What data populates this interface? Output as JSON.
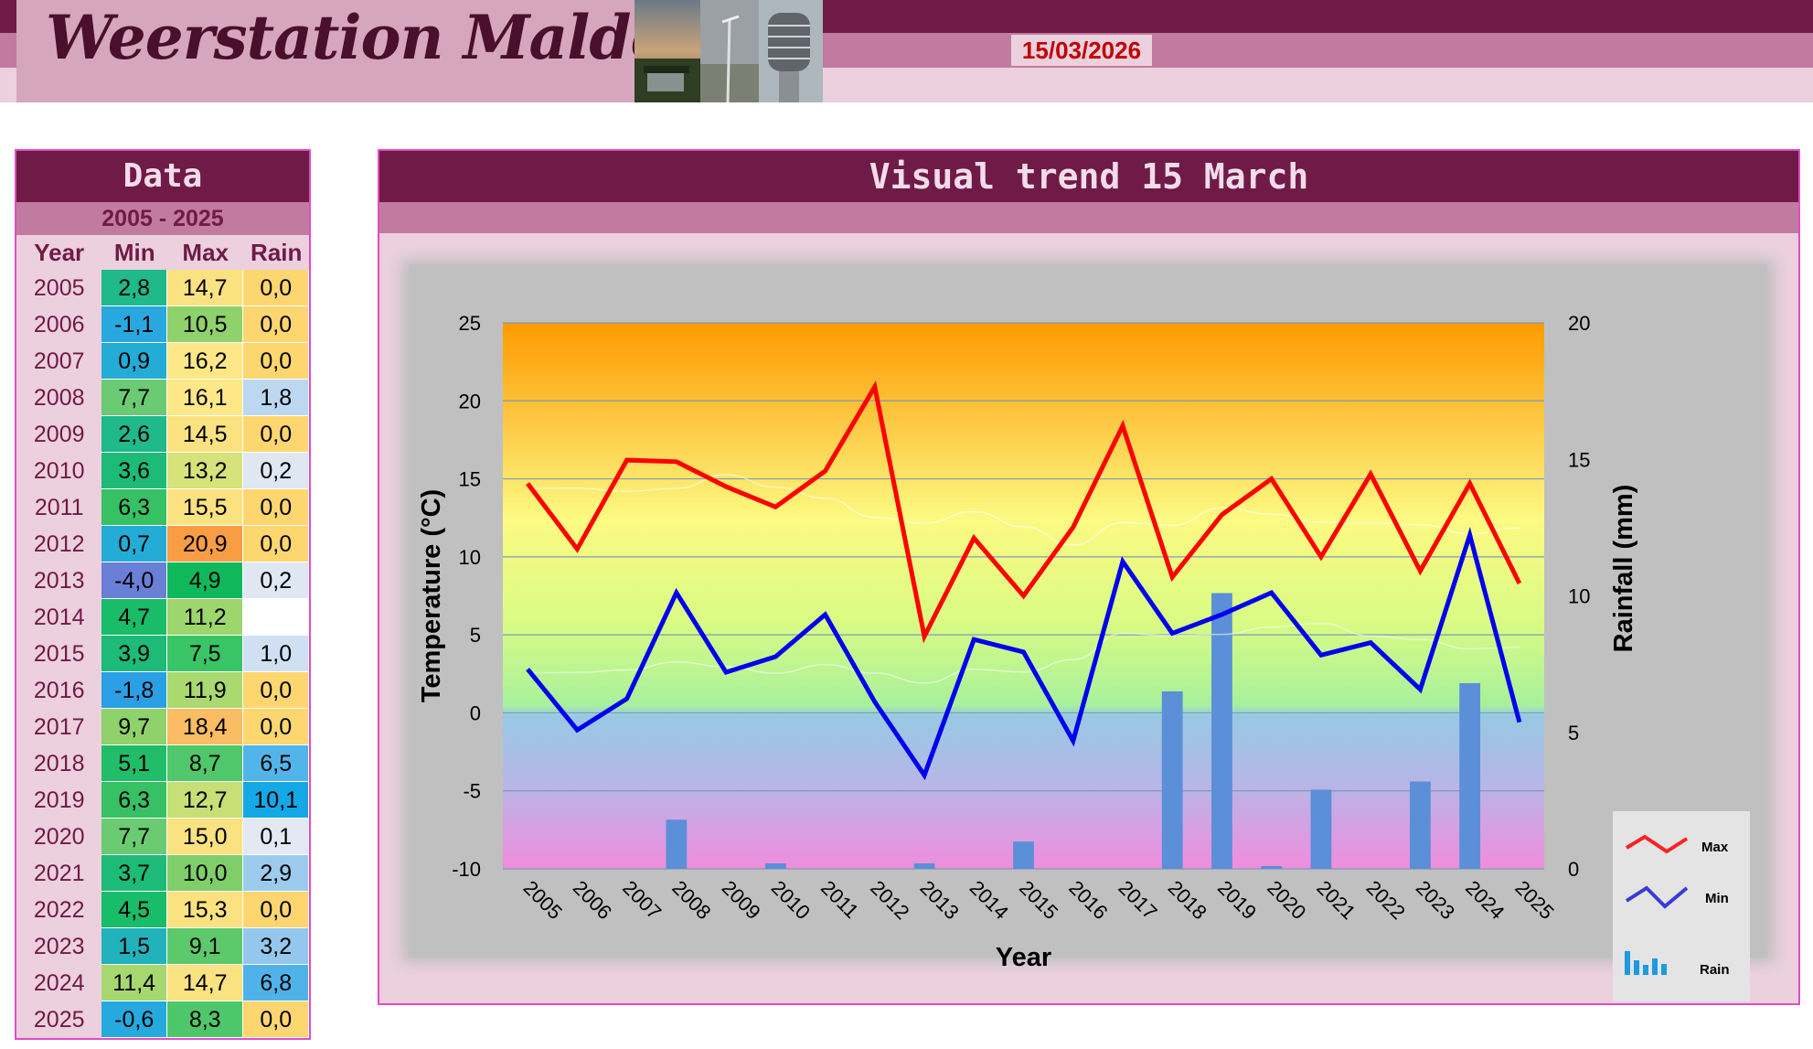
{
  "header": {
    "site_title": "Weerstation Malderen",
    "date": "15/03/2026"
  },
  "data_panel": {
    "title": "Data",
    "range": "2005 - 2025",
    "columns": [
      "Year",
      "Min",
      "Max",
      "Rain"
    ],
    "rows": [
      {
        "year": "2005",
        "min": "2,8",
        "max": "14,7",
        "rain": "0,0",
        "min_color": "#1fb98a",
        "max_color": "#fbe281",
        "rain_color": "#fdd670"
      },
      {
        "year": "2006",
        "min": "-1,1",
        "max": "10,5",
        "rain": "0,0",
        "min_color": "#29a8e0",
        "max_color": "#8fd16a",
        "rain_color": "#fdd670"
      },
      {
        "year": "2007",
        "min": "0,9",
        "max": "16,2",
        "rain": "0,0",
        "min_color": "#23acd5",
        "max_color": "#fde787",
        "rain_color": "#fdd670"
      },
      {
        "year": "2008",
        "min": "7,7",
        "max": "16,1",
        "rain": "1,8",
        "min_color": "#6acb73",
        "max_color": "#fde787",
        "rain_color": "#bcd8f0"
      },
      {
        "year": "2009",
        "min": "2,6",
        "max": "14,5",
        "rain": "0,0",
        "min_color": "#1fb98a",
        "max_color": "#fbe281",
        "rain_color": "#fdd670"
      },
      {
        "year": "2010",
        "min": "3,6",
        "max": "13,2",
        "rain": "0,2",
        "min_color": "#1dbb77",
        "max_color": "#d6e27a",
        "rain_color": "#dfe7f3"
      },
      {
        "year": "2011",
        "min": "6,3",
        "max": "15,5",
        "rain": "0,0",
        "min_color": "#36c164",
        "max_color": "#fbe281",
        "rain_color": "#fdd670"
      },
      {
        "year": "2012",
        "min": "0,7",
        "max": "20,9",
        "rain": "0,0",
        "min_color": "#23acd5",
        "max_color": "#f99d45",
        "rain_color": "#fdd670"
      },
      {
        "year": "2013",
        "min": "-4,0",
        "max": "4,9",
        "rain": "0,2",
        "min_color": "#6a7fd6",
        "max_color": "#10b85c",
        "rain_color": "#dfe7f3"
      },
      {
        "year": "2014",
        "min": "4,7",
        "max": "11,2",
        "rain": "",
        "min_color": "#19bc69",
        "max_color": "#9cd66c",
        "rain_color": "#ffffff"
      },
      {
        "year": "2015",
        "min": "3,9",
        "max": "7,5",
        "rain": "1,0",
        "min_color": "#1dbb77",
        "max_color": "#39c466",
        "rain_color": "#cfe0f2"
      },
      {
        "year": "2016",
        "min": "-1,8",
        "max": "11,9",
        "rain": "0,0",
        "min_color": "#2b9fe6",
        "max_color": "#a9d96f",
        "rain_color": "#fdd670"
      },
      {
        "year": "2017",
        "min": "9,7",
        "max": "18,4",
        "rain": "0,0",
        "min_color": "#8fd16a",
        "max_color": "#fbbd63",
        "rain_color": "#fdd670"
      },
      {
        "year": "2018",
        "min": "5,1",
        "max": "8,7",
        "rain": "6,5",
        "min_color": "#22bd68",
        "max_color": "#50c76a",
        "rain_color": "#52b5ea"
      },
      {
        "year": "2019",
        "min": "6,3",
        "max": "12,7",
        "rain": "10,1",
        "min_color": "#36c164",
        "max_color": "#c6df76",
        "rain_color": "#14a8e6"
      },
      {
        "year": "2020",
        "min": "7,7",
        "max": "15,0",
        "rain": "0,1",
        "min_color": "#6acb73",
        "max_color": "#fbe281",
        "rain_color": "#e3e8f3"
      },
      {
        "year": "2021",
        "min": "3,7",
        "max": "10,0",
        "rain": "2,9",
        "min_color": "#1dbb77",
        "max_color": "#80ce69",
        "rain_color": "#9ccbee"
      },
      {
        "year": "2022",
        "min": "4,5",
        "max": "15,3",
        "rain": "0,0",
        "min_color": "#19bc69",
        "max_color": "#fbe281",
        "rain_color": "#fdd670"
      },
      {
        "year": "2023",
        "min": "1,5",
        "max": "9,1",
        "rain": "3,2",
        "min_color": "#21b2bc",
        "max_color": "#5cc96a",
        "rain_color": "#93c7ed"
      },
      {
        "year": "2024",
        "min": "11,4",
        "max": "14,7",
        "rain": "6,8",
        "min_color": "#a6d86f",
        "max_color": "#fbe281",
        "rain_color": "#4fb3ea"
      },
      {
        "year": "2025",
        "min": "-0,6",
        "max": "8,3",
        "rain": "0,0",
        "min_color": "#26a9de",
        "max_color": "#4ec76a",
        "rain_color": "#fdd670"
      }
    ]
  },
  "chart_panel": {
    "title": "Visual  trend 15 March"
  },
  "chart_data": {
    "type": "line",
    "categories": [
      "2005",
      "2006",
      "2007",
      "2008",
      "2009",
      "2010",
      "2011",
      "2012",
      "2013",
      "2014",
      "2015",
      "2016",
      "2017",
      "2018",
      "2019",
      "2020",
      "2021",
      "2022",
      "2023",
      "2024",
      "2025"
    ],
    "series": [
      {
        "name": "Max",
        "type": "line",
        "axis": "left",
        "color": "#ff0000",
        "values": [
          14.7,
          10.5,
          16.2,
          16.1,
          14.5,
          13.2,
          15.5,
          20.9,
          4.9,
          11.2,
          7.5,
          11.9,
          18.4,
          8.7,
          12.7,
          15.0,
          10.0,
          15.3,
          9.1,
          14.7,
          8.3
        ]
      },
      {
        "name": "Min",
        "type": "line",
        "axis": "left",
        "color": "#0000ee",
        "values": [
          2.8,
          -1.1,
          0.9,
          7.7,
          2.6,
          3.6,
          6.3,
          0.7,
          -4.0,
          4.7,
          3.9,
          -1.8,
          9.7,
          5.1,
          6.3,
          7.7,
          3.7,
          4.5,
          1.5,
          11.4,
          -0.6
        ]
      },
      {
        "name": "Rain",
        "type": "bar",
        "axis": "right",
        "color": "#5b8fd8",
        "values": [
          0.0,
          0.0,
          0.0,
          1.8,
          0.0,
          0.2,
          0.0,
          0.0,
          0.2,
          null,
          1.0,
          0.0,
          0.0,
          6.5,
          10.1,
          0.1,
          2.9,
          0.0,
          3.2,
          6.8,
          0.0
        ]
      }
    ],
    "xlabel": "Year",
    "ylabel": "Temperature (°C)",
    "y2label": "Rainfall (mm)",
    "ylim": [
      -10,
      25
    ],
    "y2lim": [
      0,
      20
    ],
    "yticks": [
      25,
      20,
      15,
      10,
      5,
      0,
      -5,
      -10
    ],
    "y2ticks": [
      20,
      15,
      10,
      5,
      0
    ],
    "grid": true,
    "legend": {
      "position": "bottom-right",
      "entries": [
        "Max",
        "Min",
        "Rain"
      ]
    }
  }
}
